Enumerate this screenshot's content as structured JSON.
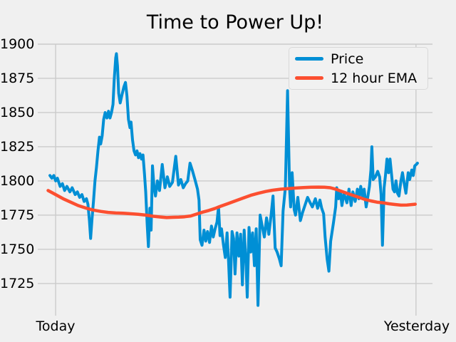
{
  "figure": {
    "title": "Time to Power Up!",
    "background_color": "#f0f0f0",
    "grid_color": "#cbcbcb",
    "text_color": "#000000"
  },
  "legend": {
    "items": [
      {
        "label": "Price",
        "color": "#008fd5"
      },
      {
        "label": "12 hour EMA",
        "color": "#fc4f30"
      }
    ]
  },
  "chart_data": {
    "type": "line",
    "title": "Time to Power Up!",
    "xlabel": "",
    "ylabel": "",
    "x_unit": "hours",
    "xlim": [
      -1.19,
      25.1
    ],
    "ylim": [
      1701.5,
      1900
    ],
    "yticks": [
      1725,
      1750,
      1775,
      1800,
      1825,
      1850,
      1875,
      1900
    ],
    "x_tick_positions": [
      0,
      24
    ],
    "x_tick_labels": [
      "Today",
      "Yesterday"
    ],
    "grid": true,
    "legend_position": "upper right",
    "series": [
      {
        "name": "Price",
        "color": "#008fd5",
        "width": 4,
        "points": [
          [
            -0.38,
            1804
          ],
          [
            -0.25,
            1802
          ],
          [
            -0.12,
            1804
          ],
          [
            0,
            1800
          ],
          [
            0.12,
            1802
          ],
          [
            0.3,
            1796
          ],
          [
            0.45,
            1798
          ],
          [
            0.6,
            1793
          ],
          [
            0.75,
            1796
          ],
          [
            0.95,
            1792
          ],
          [
            1.1,
            1795
          ],
          [
            1.3,
            1790
          ],
          [
            1.45,
            1792
          ],
          [
            1.6,
            1788
          ],
          [
            1.75,
            1790
          ],
          [
            1.9,
            1785
          ],
          [
            2.05,
            1787
          ],
          [
            2.15,
            1783
          ],
          [
            2.25,
            1771
          ],
          [
            2.33,
            1758
          ],
          [
            2.42,
            1772
          ],
          [
            2.52,
            1785
          ],
          [
            2.62,
            1800
          ],
          [
            2.72,
            1810
          ],
          [
            2.82,
            1822
          ],
          [
            2.92,
            1832
          ],
          [
            3.0,
            1827
          ],
          [
            3.1,
            1833
          ],
          [
            3.2,
            1845
          ],
          [
            3.3,
            1850
          ],
          [
            3.42,
            1846
          ],
          [
            3.52,
            1851
          ],
          [
            3.62,
            1846
          ],
          [
            3.72,
            1850
          ],
          [
            3.82,
            1856
          ],
          [
            3.9,
            1874
          ],
          [
            4.0,
            1890
          ],
          [
            4.05,
            1893
          ],
          [
            4.12,
            1884
          ],
          [
            4.2,
            1864
          ],
          [
            4.3,
            1857
          ],
          [
            4.42,
            1863
          ],
          [
            4.55,
            1869
          ],
          [
            4.65,
            1872
          ],
          [
            4.75,
            1862
          ],
          [
            4.85,
            1845
          ],
          [
            4.95,
            1839
          ],
          [
            5.02,
            1843
          ],
          [
            5.12,
            1830
          ],
          [
            5.22,
            1822
          ],
          [
            5.32,
            1819
          ],
          [
            5.42,
            1822
          ],
          [
            5.52,
            1817
          ],
          [
            5.62,
            1820
          ],
          [
            5.72,
            1816
          ],
          [
            5.82,
            1819
          ],
          [
            5.92,
            1805
          ],
          [
            6.0,
            1792
          ],
          [
            6.1,
            1768
          ],
          [
            6.18,
            1752
          ],
          [
            6.28,
            1780
          ],
          [
            6.36,
            1764
          ],
          [
            6.45,
            1811
          ],
          [
            6.55,
            1796
          ],
          [
            6.65,
            1789
          ],
          [
            6.78,
            1800
          ],
          [
            6.92,
            1793
          ],
          [
            7.1,
            1812
          ],
          [
            7.28,
            1795
          ],
          [
            7.44,
            1803
          ],
          [
            7.6,
            1796
          ],
          [
            7.78,
            1799
          ],
          [
            8.0,
            1818
          ],
          [
            8.18,
            1797
          ],
          [
            8.34,
            1801
          ],
          [
            8.5,
            1795
          ],
          [
            8.65,
            1798
          ],
          [
            8.8,
            1800
          ],
          [
            8.95,
            1813
          ],
          [
            9.1,
            1808
          ],
          [
            9.28,
            1801
          ],
          [
            9.45,
            1794
          ],
          [
            9.55,
            1786
          ],
          [
            9.63,
            1757
          ],
          [
            9.75,
            1753
          ],
          [
            9.88,
            1764
          ],
          [
            10.0,
            1756
          ],
          [
            10.12,
            1763
          ],
          [
            10.25,
            1755
          ],
          [
            10.38,
            1767
          ],
          [
            10.5,
            1759
          ],
          [
            10.62,
            1765
          ],
          [
            10.75,
            1770
          ],
          [
            10.85,
            1781
          ],
          [
            10.95,
            1760
          ],
          [
            11.05,
            1765
          ],
          [
            11.18,
            1753
          ],
          [
            11.3,
            1744
          ],
          [
            11.42,
            1762
          ],
          [
            11.52,
            1741
          ],
          [
            11.62,
            1715
          ],
          [
            11.75,
            1763
          ],
          [
            11.85,
            1758
          ],
          [
            11.95,
            1732
          ],
          [
            12.08,
            1762
          ],
          [
            12.2,
            1745
          ],
          [
            12.32,
            1761
          ],
          [
            12.44,
            1724
          ],
          [
            12.56,
            1764
          ],
          [
            12.68,
            1740
          ],
          [
            12.76,
            1715
          ],
          [
            12.88,
            1766
          ],
          [
            13.0,
            1748
          ],
          [
            13.12,
            1762
          ],
          [
            13.24,
            1738
          ],
          [
            13.36,
            1765
          ],
          [
            13.48,
            1709
          ],
          [
            13.62,
            1775
          ],
          [
            13.76,
            1767
          ],
          [
            13.9,
            1759
          ],
          [
            14.05,
            1773
          ],
          [
            14.2,
            1761
          ],
          [
            14.35,
            1775
          ],
          [
            14.48,
            1789
          ],
          [
            14.62,
            1751
          ],
          [
            14.75,
            1748
          ],
          [
            14.9,
            1743
          ],
          [
            15.02,
            1738
          ],
          [
            15.15,
            1778
          ],
          [
            15.3,
            1795
          ],
          [
            15.45,
            1866
          ],
          [
            15.58,
            1795
          ],
          [
            15.65,
            1781
          ],
          [
            15.75,
            1806
          ],
          [
            15.89,
            1779
          ],
          [
            15.98,
            1775
          ],
          [
            16.13,
            1788
          ],
          [
            16.3,
            1771
          ],
          [
            16.45,
            1777
          ],
          [
            16.6,
            1782
          ],
          [
            16.78,
            1788
          ],
          [
            16.95,
            1784
          ],
          [
            17.1,
            1781
          ],
          [
            17.3,
            1787
          ],
          [
            17.45,
            1780
          ],
          [
            17.6,
            1786
          ],
          [
            17.72,
            1780
          ],
          [
            17.85,
            1776
          ],
          [
            17.95,
            1759
          ],
          [
            18.08,
            1743
          ],
          [
            18.2,
            1734
          ],
          [
            18.32,
            1756
          ],
          [
            18.5,
            1769
          ],
          [
            18.65,
            1781
          ],
          [
            18.72,
            1795
          ],
          [
            18.85,
            1787
          ],
          [
            18.97,
            1792
          ],
          [
            19.07,
            1782
          ],
          [
            19.2,
            1791
          ],
          [
            19.4,
            1784
          ],
          [
            19.54,
            1794
          ],
          [
            19.68,
            1782
          ],
          [
            19.8,
            1792
          ],
          [
            19.95,
            1785
          ],
          [
            20.1,
            1794
          ],
          [
            20.2,
            1787
          ],
          [
            20.32,
            1796
          ],
          [
            20.45,
            1788
          ],
          [
            20.55,
            1794
          ],
          [
            20.68,
            1781
          ],
          [
            20.8,
            1789
          ],
          [
            20.9,
            1796
          ],
          [
            21.0,
            1808
          ],
          [
            21.06,
            1825
          ],
          [
            21.15,
            1801
          ],
          [
            21.3,
            1803
          ],
          [
            21.45,
            1807
          ],
          [
            21.58,
            1803
          ],
          [
            21.68,
            1790
          ],
          [
            21.77,
            1753
          ],
          [
            21.88,
            1795
          ],
          [
            21.97,
            1804
          ],
          [
            22.07,
            1816
          ],
          [
            22.17,
            1806
          ],
          [
            22.27,
            1816
          ],
          [
            22.37,
            1805
          ],
          [
            22.47,
            1794
          ],
          [
            22.57,
            1792
          ],
          [
            22.67,
            1800
          ],
          [
            22.77,
            1791
          ],
          [
            22.87,
            1789
          ],
          [
            23.0,
            1800
          ],
          [
            23.1,
            1806
          ],
          [
            23.2,
            1799
          ],
          [
            23.33,
            1791
          ],
          [
            23.48,
            1806
          ],
          [
            23.58,
            1801
          ],
          [
            23.72,
            1808
          ],
          [
            23.82,
            1804
          ],
          [
            23.92,
            1811
          ],
          [
            24.02,
            1812
          ],
          [
            24.1,
            1813
          ]
        ]
      },
      {
        "name": "12 hour EMA",
        "color": "#fc4f30",
        "width": 4.5,
        "points": [
          [
            -0.5,
            1793
          ],
          [
            0,
            1790
          ],
          [
            0.5,
            1787
          ],
          [
            1,
            1784.5
          ],
          [
            1.5,
            1782
          ],
          [
            2,
            1780.2
          ],
          [
            2.5,
            1778.7
          ],
          [
            3,
            1777.7
          ],
          [
            3.5,
            1777
          ],
          [
            4,
            1776.6
          ],
          [
            4.5,
            1776.4
          ],
          [
            5,
            1776
          ],
          [
            5.5,
            1775.6
          ],
          [
            6,
            1775
          ],
          [
            6.5,
            1774.2
          ],
          [
            7,
            1773.6
          ],
          [
            7.4,
            1773.2
          ],
          [
            7.8,
            1773.4
          ],
          [
            8.2,
            1773.5
          ],
          [
            8.6,
            1773.8
          ],
          [
            9,
            1774.4
          ],
          [
            9.4,
            1775.8
          ],
          [
            9.8,
            1777.2
          ],
          [
            10.2,
            1778.4
          ],
          [
            10.6,
            1779.8
          ],
          [
            11,
            1781.5
          ],
          [
            11.5,
            1783.5
          ],
          [
            12,
            1785.5
          ],
          [
            12.5,
            1787.5
          ],
          [
            13,
            1789.5
          ],
          [
            13.5,
            1791
          ],
          [
            14,
            1792.3
          ],
          [
            14.5,
            1793.3
          ],
          [
            15,
            1794
          ],
          [
            15.5,
            1794.4
          ],
          [
            16,
            1794.8
          ],
          [
            16.5,
            1795.2
          ],
          [
            17,
            1795.4
          ],
          [
            17.5,
            1795.5
          ],
          [
            17.9,
            1795.4
          ],
          [
            18.3,
            1795
          ],
          [
            18.7,
            1793.8
          ],
          [
            19,
            1792.5
          ],
          [
            19.4,
            1791
          ],
          [
            19.8,
            1789.5
          ],
          [
            20.2,
            1788
          ],
          [
            20.6,
            1786.5
          ],
          [
            21,
            1785.4
          ],
          [
            21.4,
            1784.5
          ],
          [
            21.8,
            1784
          ],
          [
            22.2,
            1783.3
          ],
          [
            22.6,
            1782.8
          ],
          [
            23,
            1782.3
          ],
          [
            23.4,
            1782.4
          ],
          [
            23.7,
            1782.7
          ],
          [
            23.95,
            1783
          ]
        ]
      }
    ]
  }
}
